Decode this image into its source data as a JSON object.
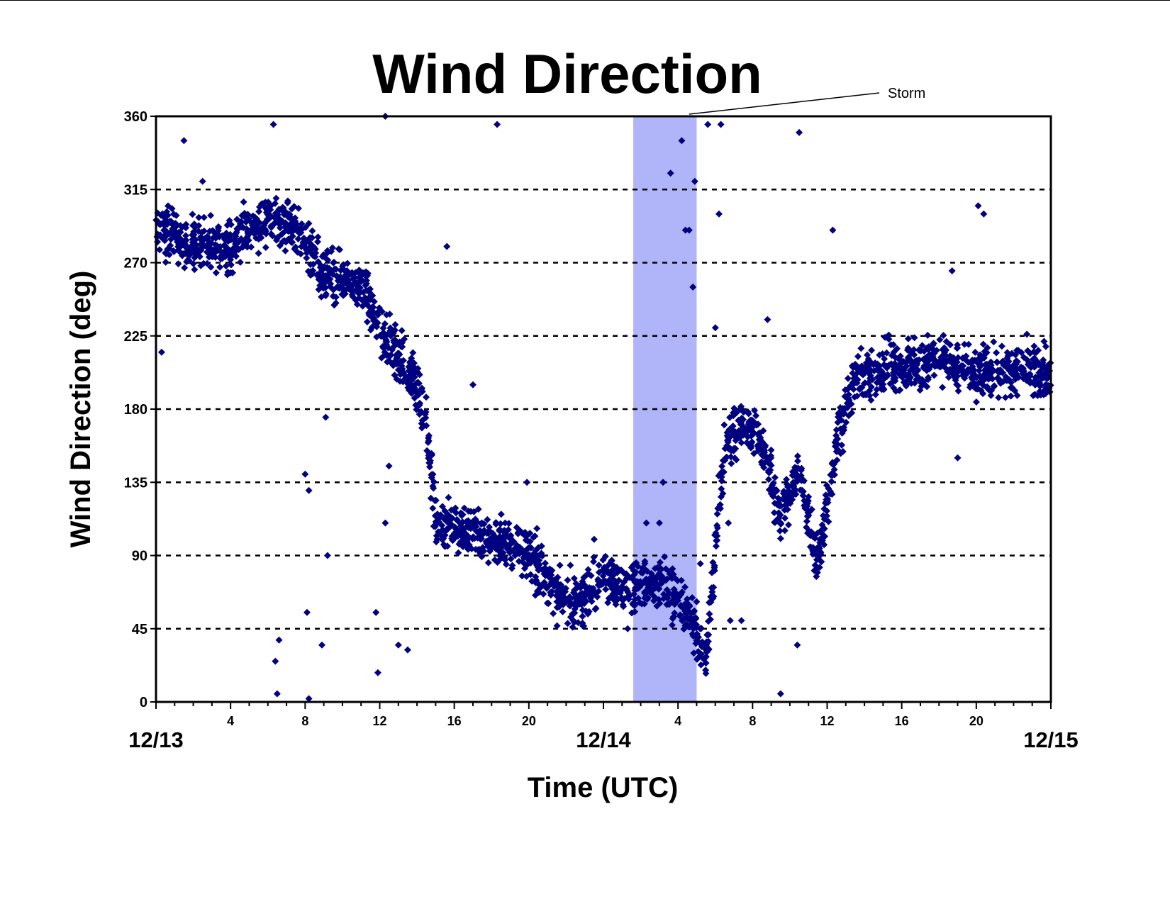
{
  "chart_data": {
    "type": "scatter",
    "title": "Wind Direction",
    "xlabel": "Time (UTC)",
    "ylabel": "Wind Direction (deg)",
    "xlim": [
      0,
      48
    ],
    "ylim": [
      0,
      360
    ],
    "yticks": [
      0,
      45,
      90,
      135,
      180,
      225,
      270,
      315,
      360
    ],
    "x_hour_ticks": [
      {
        "x": 4,
        "label": "4"
      },
      {
        "x": 8,
        "label": "8"
      },
      {
        "x": 12,
        "label": "12"
      },
      {
        "x": 16,
        "label": "16"
      },
      {
        "x": 20,
        "label": "20"
      },
      {
        "x": 28,
        "label": "4"
      },
      {
        "x": 32,
        "label": "8"
      },
      {
        "x": 36,
        "label": "12"
      },
      {
        "x": 40,
        "label": "16"
      },
      {
        "x": 44,
        "label": "20"
      }
    ],
    "x_date_ticks": [
      {
        "x": 0,
        "label": "12/13"
      },
      {
        "x": 24,
        "label": "12/14"
      },
      {
        "x": 48,
        "label": "12/15"
      }
    ],
    "grid": "horizontal dashed at each y tick",
    "marker": {
      "shape": "diamond",
      "color": "#000080"
    },
    "highlight_band": {
      "x_start": 25.6,
      "x_end": 29.0,
      "color": "#b0b4f8",
      "label": "Storm"
    },
    "trend_segments": [
      [
        0,
        290
      ],
      [
        2,
        282
      ],
      [
        4,
        280
      ],
      [
        6,
        300
      ],
      [
        7.5,
        290
      ],
      [
        9,
        262
      ],
      [
        11,
        255
      ],
      [
        12.5,
        220
      ],
      [
        13.8,
        200
      ],
      [
        14.5,
        175
      ],
      [
        15,
        110
      ],
      [
        17,
        105
      ],
      [
        18.5,
        98
      ],
      [
        20,
        92
      ],
      [
        21.5,
        65
      ],
      [
        22.5,
        62
      ],
      [
        24,
        75
      ],
      [
        26,
        72
      ],
      [
        27.5,
        70
      ],
      [
        28.5,
        55
      ],
      [
        29.5,
        25
      ],
      [
        30.5,
        160
      ],
      [
        31.5,
        170
      ],
      [
        32.5,
        160
      ],
      [
        33.5,
        115
      ],
      [
        34.5,
        140
      ],
      [
        35.5,
        85
      ],
      [
        36.5,
        160
      ],
      [
        37.5,
        200
      ],
      [
        40,
        205
      ],
      [
        42,
        212
      ],
      [
        44,
        200
      ],
      [
        46,
        205
      ],
      [
        48,
        200
      ]
    ],
    "outliers": [
      [
        0.3,
        215
      ],
      [
        1.5,
        345
      ],
      [
        2.5,
        320
      ],
      [
        6.3,
        355
      ],
      [
        6.5,
        5
      ],
      [
        6.4,
        25
      ],
      [
        6.6,
        38
      ],
      [
        8.2,
        2
      ],
      [
        8.1,
        55
      ],
      [
        8.0,
        140
      ],
      [
        8.2,
        130
      ],
      [
        8.9,
        35
      ],
      [
        9.1,
        175
      ],
      [
        9.2,
        90
      ],
      [
        11.8,
        55
      ],
      [
        11.9,
        18
      ],
      [
        12.3,
        360
      ],
      [
        12.3,
        110
      ],
      [
        12.5,
        145
      ],
      [
        13.0,
        35
      ],
      [
        13.5,
        32
      ],
      [
        15.6,
        280
      ],
      [
        17.0,
        195
      ],
      [
        18.3,
        355
      ],
      [
        19.9,
        135
      ],
      [
        27.6,
        325
      ],
      [
        28.2,
        345
      ],
      [
        28.4,
        290
      ],
      [
        28.6,
        290
      ],
      [
        28.8,
        255
      ],
      [
        28.9,
        320
      ],
      [
        29.6,
        355
      ],
      [
        30.3,
        355
      ],
      [
        30.2,
        300
      ],
      [
        30.0,
        230
      ],
      [
        30.8,
        50
      ],
      [
        31.4,
        180
      ],
      [
        32.8,
        235
      ],
      [
        34.5,
        350
      ],
      [
        34.4,
        35
      ],
      [
        36.3,
        290
      ],
      [
        33.5,
        5
      ],
      [
        43.0,
        150
      ],
      [
        44.1,
        305
      ],
      [
        44.4,
        300
      ],
      [
        42.7,
        265
      ],
      [
        23.5,
        100
      ],
      [
        25.3,
        45
      ],
      [
        26.3,
        110
      ],
      [
        27.5,
        60
      ],
      [
        29.2,
        85
      ],
      [
        27.2,
        135
      ],
      [
        27.0,
        110
      ],
      [
        30.7,
        110
      ],
      [
        31.4,
        50
      ]
    ]
  },
  "annotation": {
    "storm_label": "Storm"
  }
}
